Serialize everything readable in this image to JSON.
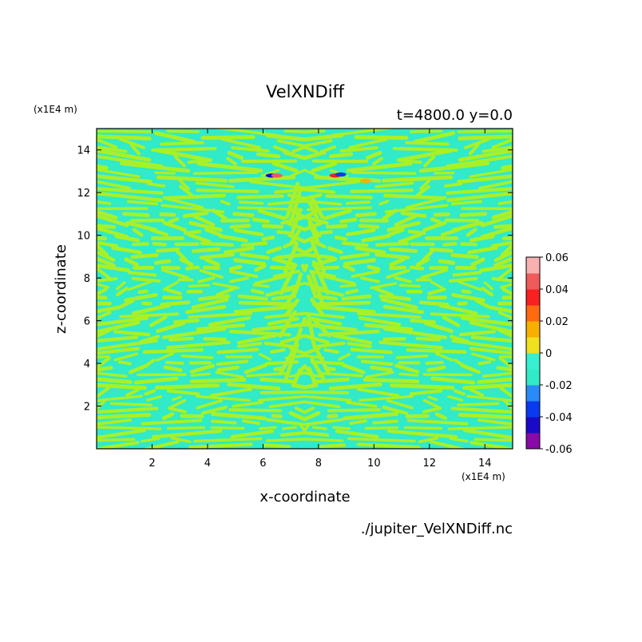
{
  "chart_data": {
    "type": "heatmap",
    "title": "VelXNDiff",
    "subtitle": "t=4800.0 y=0.0",
    "xlabel": "x-coordinate",
    "ylabel": "z-coordinate",
    "x_unit": "(x1E4 m)",
    "y_unit": "(x1E4 m)",
    "source": "./jupiter_VelXNDiff.nc",
    "xlim": [
      0,
      15
    ],
    "ylim": [
      0,
      15
    ],
    "x_ticks": [
      2,
      4,
      6,
      8,
      10,
      12,
      14
    ],
    "y_ticks": [
      2,
      4,
      6,
      8,
      10,
      12,
      14
    ],
    "x_tick_labels": [
      "2",
      "4",
      "6",
      "8",
      "10",
      "12",
      "14"
    ],
    "y_tick_labels": [
      "2",
      "4",
      "6",
      "8",
      "10",
      "12",
      "14"
    ],
    "colorbar": {
      "min": -0.06,
      "max": 0.06,
      "levels": [
        -0.06,
        -0.05,
        -0.04,
        -0.03,
        -0.02,
        -0.01,
        0,
        0.01,
        0.02,
        0.03,
        0.04,
        0.05,
        0.06
      ],
      "colors": [
        "#8a0aa8",
        "#1a0ac8",
        "#0a3af0",
        "#2a8af8",
        "#30eac8",
        "#38f0d0",
        "#a8f028",
        "#f0e020",
        "#f8b000",
        "#ff6a10",
        "#f82020",
        "#f05a5a",
        "#f8b0b0"
      ],
      "tick_labels": [
        "0.06",
        "0.04",
        "0.02",
        "0",
        "-0.02",
        "-0.04",
        "-0.06"
      ]
    },
    "field_description_colors": {
      "positive_small": "#a8f028",
      "negative_small": "#30eac8"
    },
    "extreme_spots": [
      {
        "x": 6.3,
        "z": 12.8,
        "value": -0.05
      },
      {
        "x": 6.5,
        "z": 12.8,
        "value": 0.05
      },
      {
        "x": 8.6,
        "z": 12.8,
        "value": 0.04
      },
      {
        "x": 8.8,
        "z": 12.85,
        "value": -0.04
      },
      {
        "x": 9.7,
        "z": 12.55,
        "value": 0.02
      }
    ],
    "grid": false
  }
}
